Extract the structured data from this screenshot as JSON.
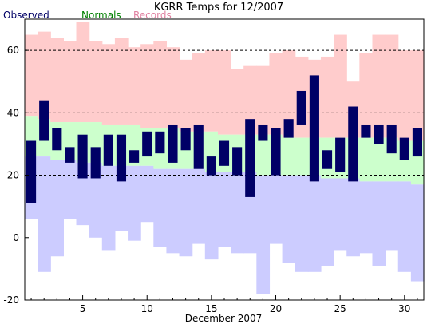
{
  "chart_data": {
    "type": "bar",
    "title": "KGRR Temps for 12/2007",
    "xlabel": "December 2007",
    "ylabel": "",
    "ylim": [
      -20,
      70
    ],
    "xlim": [
      0.5,
      31.5
    ],
    "yticks": [
      -20,
      0,
      20,
      40,
      60
    ],
    "xticks": [
      5,
      10,
      15,
      20,
      25,
      30
    ],
    "grid": "dashed horizontal at 20, 40, 60",
    "legend": [
      {
        "name": "Observed",
        "color": "#000066"
      },
      {
        "name": "Normals",
        "color": "#008000"
      },
      {
        "name": "Records",
        "color": "#e080a0"
      }
    ],
    "days": [
      1,
      2,
      3,
      4,
      5,
      6,
      7,
      8,
      9,
      10,
      11,
      12,
      13,
      14,
      15,
      16,
      17,
      18,
      19,
      20,
      21,
      22,
      23,
      24,
      25,
      26,
      27,
      28,
      29,
      30,
      31
    ],
    "series": [
      {
        "name": "Record High",
        "values": [
          65,
          66,
          64,
          63,
          69,
          63,
          62,
          64,
          61,
          62,
          63,
          61,
          57,
          59,
          60,
          60,
          54,
          55,
          55,
          59,
          60,
          58,
          57,
          58,
          65,
          50,
          59,
          65,
          65,
          60,
          60
        ]
      },
      {
        "name": "Normal High",
        "values": [
          39,
          38,
          37,
          37,
          37,
          37,
          36,
          36,
          36,
          35,
          35,
          35,
          34,
          34,
          34,
          33,
          33,
          33,
          33,
          33,
          32,
          32,
          32,
          32,
          32,
          32,
          32,
          32,
          32,
          31,
          31
        ]
      },
      {
        "name": "Normal Low",
        "values": [
          26,
          26,
          25,
          25,
          24,
          24,
          23,
          23,
          23,
          23,
          22,
          22,
          22,
          22,
          21,
          21,
          21,
          21,
          20,
          20,
          20,
          20,
          20,
          19,
          19,
          19,
          18,
          18,
          18,
          18,
          17
        ]
      },
      {
        "name": "Record Low",
        "values": [
          6,
          -11,
          -6,
          6,
          4,
          0,
          -4,
          2,
          -1,
          5,
          -3,
          -5,
          -6,
          -2,
          -7,
          -3,
          -5,
          -5,
          -18,
          -2,
          -8,
          -11,
          -11,
          -9,
          -4,
          -6,
          -5,
          -9,
          -4,
          -11,
          -14
        ]
      },
      {
        "name": "Observed High",
        "values": [
          31,
          44,
          35,
          29,
          33,
          29,
          33,
          33,
          28,
          34,
          34,
          36,
          35,
          36,
          26,
          31,
          29,
          38,
          36,
          35,
          38,
          47,
          52,
          28,
          32,
          42,
          36,
          36,
          36,
          32,
          35
        ]
      },
      {
        "name": "Observed Low",
        "values": [
          11,
          31,
          28,
          24,
          19,
          19,
          23,
          18,
          24,
          26,
          27,
          24,
          28,
          22,
          20,
          23,
          20,
          13,
          31,
          20,
          32,
          36,
          18,
          22,
          21,
          18,
          32,
          30,
          27,
          25,
          26
        ]
      }
    ]
  }
}
